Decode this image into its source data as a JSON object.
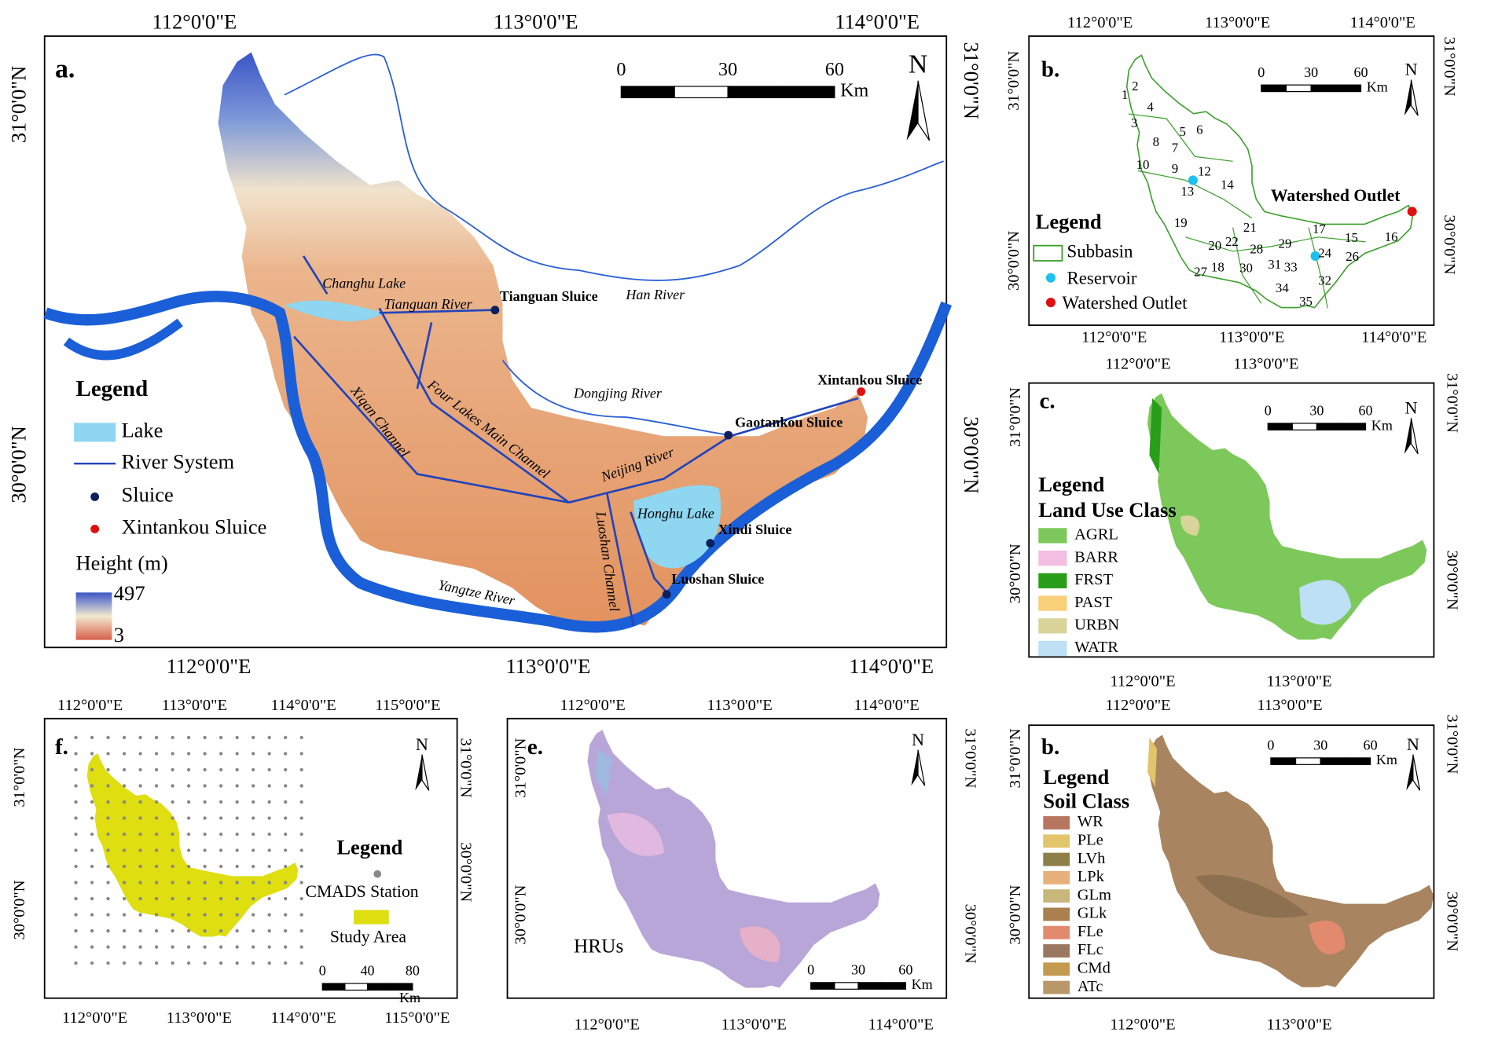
{
  "panel_a": {
    "label": "a.",
    "lon_top": [
      "112°0'0\"E",
      "113°0'0\"E",
      "114°0'0\"E"
    ],
    "lon_bottom": [
      "112°0'0\"E",
      "113°0'0\"E",
      "114°0'0\"E"
    ],
    "lat_left": [
      "31°0'0\"N",
      "30°0'0\"N"
    ],
    "lat_right": [
      "31°0'0\"N",
      "30°0'0\"N"
    ],
    "scale": {
      "ticks": [
        0,
        30,
        60
      ],
      "unit": "Km"
    },
    "north": "N",
    "legend": {
      "title": "Legend",
      "items": [
        "Lake",
        "River System",
        "Sluice",
        "Xintankou Sluice"
      ],
      "height_title": "Height (m)",
      "height_max": 497,
      "height_min": 3
    },
    "annotations": [
      "Changhu Lake",
      "Tianguan River",
      "Tianguan Sluice",
      "Han River",
      "Dongjing River",
      "Xintankou Sluice",
      "Gaotankou Sluice",
      "Neijing River",
      "Four Lakes Main Channel",
      "Xiqan Channel",
      "Honghu Lake",
      "Xindi Sluice",
      "Luoshan Sluice",
      "Luoshan Channel",
      "Yangtze River"
    ]
  },
  "panel_b": {
    "label": "b.",
    "lon_top": [
      "112°0'0\"E",
      "113°0'0\"E",
      "114°0'0\"E"
    ],
    "lon_bottom": [
      "112°0'0\"E",
      "113°0'0\"E",
      "114°0'0\"E"
    ],
    "lat_left": [
      "31°0'0\"N",
      "30°0'0\"N"
    ],
    "lat_right": [
      "31°0'0\"N",
      "30°0'0\"N"
    ],
    "scale": {
      "ticks": [
        0,
        30,
        60
      ],
      "unit": "Km"
    },
    "north": "N",
    "legend": {
      "title": "Legend",
      "items": [
        "Subbasin",
        "Reservoir",
        "Watershed Outlet"
      ]
    },
    "outlet_label": "Watershed Outlet",
    "subbasin_ids": [
      1,
      2,
      3,
      4,
      5,
      6,
      7,
      8,
      9,
      10,
      12,
      13,
      14,
      15,
      16,
      17,
      18,
      19,
      20,
      21,
      22,
      24,
      26,
      27,
      28,
      29,
      30,
      31,
      32,
      33,
      34,
      35
    ]
  },
  "panel_c": {
    "label": "c.",
    "lon_top": [
      "112°0'0\"E",
      "113°0'0\"E"
    ],
    "lon_bottom": [
      "112°0'0\"E",
      "113°0'0\"E"
    ],
    "lat_left": [
      "31°0'0\"N",
      "30°0'0\"N"
    ],
    "lat_right": [
      "31°0'0\"N",
      "30°0'0\"N"
    ],
    "scale": {
      "ticks": [
        0,
        30,
        60
      ],
      "unit": "Km"
    },
    "north": "N",
    "legend": {
      "title": "Legend",
      "subtitle": "Land Use Class",
      "items": [
        {
          "name": "AGRL",
          "color": "#7dc85a"
        },
        {
          "name": "BARR",
          "color": "#f4bde2"
        },
        {
          "name": "FRST",
          "color": "#2a9e1a"
        },
        {
          "name": "PAST",
          "color": "#f9cf7a"
        },
        {
          "name": "URBN",
          "color": "#d8d49a"
        },
        {
          "name": "WATR",
          "color": "#bde0f5"
        }
      ]
    }
  },
  "panel_d": {
    "label": "b.",
    "lon_top": [
      "112°0'0\"E",
      "113°0'0\"E"
    ],
    "lon_bottom": [
      "112°0'0\"E",
      "113°0'0\"E"
    ],
    "lat_left": [
      "31°0'0\"N",
      "30°0'0\"N"
    ],
    "lat_right": [
      "31°0'0\"N",
      "30°0'0\"N"
    ],
    "scale": {
      "ticks": [
        0,
        30,
        60
      ],
      "unit": "Km"
    },
    "north": "N",
    "legend": {
      "title": "Legend",
      "subtitle": "Soil Class",
      "items": [
        {
          "name": "WR",
          "color": "#b87560"
        },
        {
          "name": "PLe",
          "color": "#e2c56a"
        },
        {
          "name": "LVh",
          "color": "#8c7f48"
        },
        {
          "name": "LPk",
          "color": "#e7b07a"
        },
        {
          "name": "GLm",
          "color": "#c8b77a"
        },
        {
          "name": "GLk",
          "color": "#a9804e"
        },
        {
          "name": "FLe",
          "color": "#e28a6d"
        },
        {
          "name": "FLc",
          "color": "#9a7860"
        },
        {
          "name": "CMd",
          "color": "#c39a50"
        },
        {
          "name": "ATc",
          "color": "#b8976a"
        }
      ]
    }
  },
  "panel_e": {
    "label": "e.",
    "lon_top": [
      "112°0'0\"E",
      "113°0'0\"E",
      "114°0'0\"E"
    ],
    "lon_bottom": [
      "112°0'0\"E",
      "113°0'0\"E",
      "114°0'0\"E"
    ],
    "lat_left": [
      "31°0'0\"N",
      "30°0'0\"N"
    ],
    "lat_right": [
      "31°0'0\"N",
      "30°0'0\"N"
    ],
    "scale": {
      "ticks": [
        0,
        30,
        60
      ],
      "unit": "Km"
    },
    "north": "N",
    "annotation": "HRUs"
  },
  "panel_f": {
    "label": "f.",
    "lon_top": [
      "112°0'0\"E",
      "113°0'0\"E",
      "114°0'0\"E",
      "115°0'0\"E"
    ],
    "lon_bottom": [
      "112°0'0\"E",
      "113°0'0\"E",
      "114°0'0\"E",
      "115°0'0\"E"
    ],
    "lat_left": [
      "31°0'0\"N",
      "30°0'0\"N"
    ],
    "lat_right": [
      "31°0'0\"N",
      "30°0'0\"N"
    ],
    "scale": {
      "ticks": [
        0,
        40,
        80
      ],
      "unit": "Km"
    },
    "north": "N",
    "legend": {
      "title": "Legend",
      "items": [
        "CMADS Station",
        "Study Area"
      ]
    }
  }
}
